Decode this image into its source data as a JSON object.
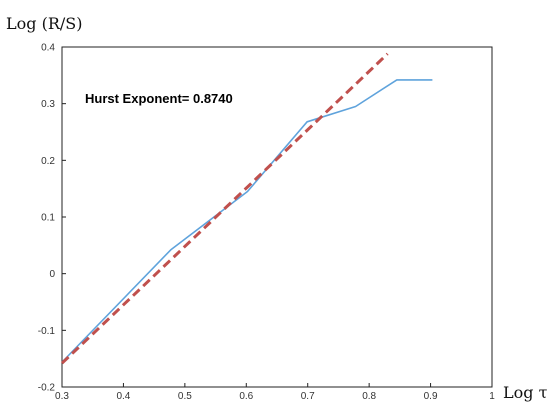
{
  "chart_data": {
    "type": "line",
    "title": "",
    "xlabel": "Log τ",
    "ylabel": "Log (R/S)",
    "xlim": [
      0.3,
      1.0
    ],
    "ylim": [
      -0.2,
      0.4
    ],
    "x_ticks": [
      "0.3",
      "0.4",
      "0.5",
      "0.6",
      "0.7",
      "0.8",
      "0.9",
      "1"
    ],
    "y_ticks": [
      "-0.2",
      "-0.1",
      "0",
      "0.1",
      "0.2",
      "0.3",
      "0.4"
    ],
    "grid": false,
    "annotation": "Hurst Exponent= 0.8740",
    "series": [
      {
        "style": "solid",
        "color": "#5fa3dc",
        "x": [
          0.301,
          0.477,
          0.602,
          0.699,
          0.778,
          0.845,
          0.903
        ],
        "y": [
          -0.155,
          0.042,
          0.145,
          0.268,
          0.295,
          0.342,
          0.342
        ]
      },
      {
        "style": "dashed",
        "color": "#c0504d",
        "x": [
          0.3,
          0.83
        ],
        "y": [
          -0.158,
          0.388
        ]
      }
    ]
  }
}
